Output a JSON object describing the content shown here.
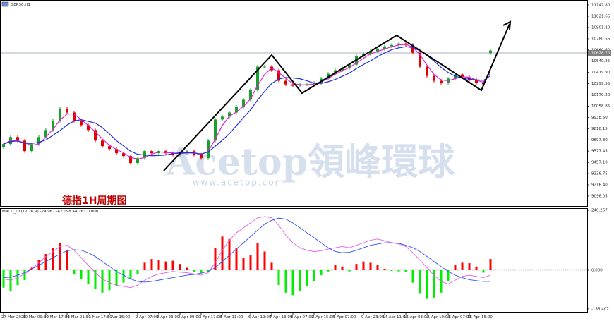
{
  "chart_data": [
    {
      "type": "candlestick",
      "title": "GER30,H1",
      "annotation": "德指1H周期图",
      "watermark": "Acetop領峰環球",
      "watermark_url": "www.acetop.com",
      "categories": [
        "27 Mar 2020",
        null,
        null,
        "30 Mar 09:00",
        null,
        null,
        "30 Mar 17:00",
        null,
        null,
        "31 Mar 01:00",
        null,
        null,
        "31 Mar 17:00",
        null,
        null,
        "1 Apr 15:00",
        null,
        null,
        null,
        "2 Apr 07:00",
        null,
        null,
        "2 Apr 23:00",
        null,
        null,
        "3 Apr 09:00",
        null,
        null,
        "3 Apr 17:00",
        null,
        null,
        "6 Apr 11:00",
        null,
        null,
        null,
        "6 Apr 19:00",
        null,
        null,
        "7 Apr 13:00",
        null,
        null,
        "8 Apr 07:00",
        null,
        null,
        "8 Apr 15:00",
        null,
        null,
        "9 Apr 07:00",
        null,
        null,
        null,
        "9 Apr 23:00",
        null,
        null,
        "14 Apr 11:00",
        null,
        null,
        "15 Apr 03:00",
        null,
        null,
        "15 Apr 19:00",
        null,
        null,
        "16 Apr 07:00",
        null,
        null,
        "16 Apr 15:00",
        null,
        null,
        null
      ],
      "open": [
        9620,
        9653,
        9728,
        9690,
        9578,
        9653,
        9728,
        9803,
        9901,
        10029,
        9991,
        9901,
        9856,
        9803,
        9690,
        9630,
        9600,
        9555,
        9525,
        9450,
        9502,
        9578,
        9555,
        9578,
        9555,
        9540,
        9555,
        9578,
        9540,
        9502,
        9690,
        9916,
        9946,
        9991,
        10052,
        10127,
        10232,
        10481,
        10481,
        10443,
        10330,
        10292,
        10277,
        10292,
        10292,
        10308,
        10353,
        10405,
        10443,
        10466,
        10503,
        10594,
        10616,
        10646,
        10669,
        10699,
        10714,
        10729,
        10714,
        10631,
        10481,
        10383,
        10330,
        10308,
        10353,
        10398,
        10368,
        10338,
        10308,
        10625
      ],
      "high": [
        9671,
        9746,
        9746,
        9708,
        9671,
        9746,
        9821,
        9919,
        10047,
        10047,
        10009,
        9919,
        9874,
        9821,
        9708,
        9648,
        9618,
        9573,
        9543,
        9520,
        9596,
        9596,
        9596,
        9596,
        9573,
        9573,
        9596,
        9596,
        9558,
        9708,
        9934,
        9964,
        10009,
        10070,
        10145,
        10250,
        10499,
        10499,
        10499,
        10461,
        10348,
        10310,
        10310,
        10310,
        10326,
        10371,
        10423,
        10461,
        10484,
        10521,
        10612,
        10634,
        10664,
        10687,
        10717,
        10732,
        10747,
        10747,
        10732,
        10649,
        10499,
        10401,
        10348,
        10371,
        10416,
        10416,
        10386,
        10356,
        10326,
        10672
      ],
      "low": [
        9602,
        9635,
        9672,
        9560,
        9560,
        9635,
        9710,
        9785,
        9883,
        9973,
        9883,
        9838,
        9785,
        9672,
        9612,
        9582,
        9537,
        9507,
        9432,
        9432,
        9484,
        9537,
        9537,
        9537,
        9522,
        9522,
        9537,
        9522,
        9484,
        9484,
        9672,
        9898,
        9928,
        9973,
        10034,
        10109,
        10214,
        10463,
        10425,
        10312,
        10274,
        10259,
        10259,
        10274,
        10274,
        10290,
        10335,
        10387,
        10425,
        10448,
        10485,
        10576,
        10598,
        10628,
        10651,
        10681,
        10696,
        10696,
        10613,
        10463,
        10365,
        10312,
        10290,
        10290,
        10335,
        10350,
        10320,
        10290,
        10274,
        10607
      ],
      "close": [
        9653,
        9728,
        9690,
        9578,
        9653,
        9728,
        9803,
        9901,
        10029,
        9991,
        9901,
        9856,
        9803,
        9690,
        9630,
        9600,
        9555,
        9525,
        9450,
        9502,
        9578,
        9555,
        9578,
        9555,
        9540,
        9555,
        9578,
        9540,
        9502,
        9690,
        9916,
        9946,
        9991,
        10052,
        10127,
        10232,
        10481,
        10481,
        10443,
        10330,
        10292,
        10277,
        10292,
        10292,
        10308,
        10353,
        10405,
        10443,
        10466,
        10503,
        10594,
        10616,
        10646,
        10669,
        10699,
        10714,
        10729,
        10714,
        10631,
        10481,
        10383,
        10330,
        10308,
        10353,
        10398,
        10368,
        10338,
        10308,
        10292,
        10654
      ],
      "up_color": "#19a02a",
      "down_color": "#e00000",
      "series": [
        {
          "color": "#e020d0",
          "values": [
            9653,
            9690,
            9690,
            9665,
            9640,
            9653,
            9728,
            9811,
            9911,
            9974,
            9974,
            9916,
            9853,
            9783,
            9708,
            9640,
            9595,
            9560,
            9510,
            9492,
            9510,
            9545,
            9570,
            9563,
            9558,
            9550,
            9558,
            9558,
            9540,
            9577,
            9703,
            9851,
            9951,
            9996,
            10057,
            10137,
            10280,
            10398,
            10468,
            10418,
            10355,
            10300,
            10287,
            10287,
            10297,
            10318,
            10355,
            10400,
            10438,
            10471,
            10521,
            10571,
            10619,
            10644,
            10671,
            10694,
            10714,
            10719,
            10691,
            10609,
            10498,
            10398,
            10340,
            10330,
            10353,
            10373,
            10368,
            10338,
            10313,
            10418
          ]
        },
        {
          "color": "#1f2fe0",
          "values": [
            9653,
            9680,
            9685,
            9662,
            9660,
            9672,
            9697,
            9747,
            9797,
            9857,
            9901,
            9914,
            9896,
            9878,
            9829,
            9762,
            9689,
            9634,
            9576,
            9544,
            9535,
            9528,
            9531,
            9536,
            9551,
            9560,
            9560,
            9559,
            9546,
            9569,
            9630,
            9694,
            9764,
            9849,
            9937,
            10019,
            10124,
            10218,
            10301,
            10349,
            10365,
            10360,
            10352,
            10330,
            10304,
            10302,
            10320,
            10345,
            10378,
            10413,
            10461,
            10504,
            10544,
            10589,
            10629,
            10663,
            10683,
            10695,
            10685,
            10652,
            10602,
            10541,
            10473,
            10420,
            10380,
            10357,
            10347,
            10341,
            10334,
            10385
          ]
        }
      ],
      "current_price": {
        "value": 10628.7,
        "label": "10628.70"
      },
      "ylim": [
        8990,
        11195
      ],
      "yticks": [
        {
          "value": 11142.8,
          "label": "11142.80"
        },
        {
          "value": 11021.65,
          "label": "11021.65"
        },
        {
          "value": 10901.2,
          "label": "10901.20"
        },
        {
          "value": 10780.55,
          "label": "10780.55"
        },
        {
          "value": 10660.6,
          "label": "10660.60"
        },
        {
          "value": 10540.25,
          "label": "10540.25"
        },
        {
          "value": 10419.9,
          "label": "10419.90"
        },
        {
          "value": 10299.55,
          "label": "10299.55"
        },
        {
          "value": 10179.2,
          "label": "10179.20"
        },
        {
          "value": 10058.85,
          "label": "10058.85"
        },
        {
          "value": 9938.5,
          "label": "9938.50"
        },
        {
          "value": 9818.15,
          "label": "9818.15"
        },
        {
          "value": 9697.8,
          "label": "9697.80"
        },
        {
          "value": 9577.45,
          "label": "9577.45"
        },
        {
          "value": 9457.1,
          "label": "9457.10"
        },
        {
          "value": 9336.75,
          "label": "9336.75"
        },
        {
          "value": 9216.4,
          "label": "9216.40"
        },
        {
          "value": 9096.05,
          "label": "9096.05"
        }
      ]
    },
    {
      "type": "macd",
      "title": "MACD_DL(12,26,9) -24.967 -47.098 44.261 0.000",
      "histogram": [
        -70,
        -85,
        -60,
        -40,
        10,
        40,
        65,
        90,
        110,
        80,
        -15,
        -35,
        -55,
        -75,
        -90,
        -80,
        -65,
        -50,
        -35,
        -15,
        30,
        45,
        40,
        35,
        38,
        25,
        10,
        -8,
        -12,
        -5,
        90,
        135,
        125,
        90,
        50,
        60,
        110,
        75,
        30,
        -60,
        -90,
        -100,
        -85,
        -65,
        -45,
        -20,
        -5,
        20,
        15,
        -5,
        25,
        35,
        30,
        20,
        5,
        -3,
        -5,
        -8,
        -50,
        -95,
        -115,
        -110,
        -90,
        -45,
        20,
        30,
        28,
        15,
        -10,
        45
      ],
      "positive_color": "#ff0000",
      "negative_color": "#00ee00",
      "series": [
        {
          "color": "#e060e0",
          "values": [
            -35,
            -40,
            -30,
            -15,
            5,
            30,
            55,
            75,
            95,
            100,
            80,
            50,
            20,
            -10,
            -35,
            -50,
            -60,
            -65,
            -70,
            -60,
            -40,
            -25,
            -15,
            -10,
            -5,
            -8,
            -10,
            -15,
            -20,
            -10,
            30,
            80,
            120,
            150,
            170,
            190,
            210,
            215,
            210,
            180,
            140,
            110,
            90,
            80,
            75,
            78,
            85,
            90,
            95,
            90,
            100,
            110,
            120,
            125,
            118,
            110,
            105,
            95,
            70,
            40,
            10,
            -20,
            -45,
            -55,
            -40,
            -25,
            -20,
            -25,
            -30,
            -20
          ]
        },
        {
          "color": "#3050ff",
          "values": [
            -30,
            -28,
            -20,
            -10,
            5,
            20,
            35,
            50,
            65,
            78,
            82,
            80,
            70,
            55,
            35,
            15,
            -5,
            -20,
            -35,
            -45,
            -48,
            -45,
            -40,
            -35,
            -30,
            -25,
            -20,
            -17,
            -12,
            -5,
            10,
            35,
            60,
            85,
            110,
            135,
            160,
            185,
            200,
            209,
            205,
            190,
            170,
            150,
            130,
            110,
            90,
            75,
            70,
            72,
            80,
            90,
            100,
            105,
            110,
            110,
            108,
            100,
            90,
            75,
            55,
            35,
            15,
            -5,
            -20,
            -30,
            -38,
            -42,
            -45,
            -45
          ]
        }
      ],
      "ylim": [
        -167,
        249
      ],
      "yticks": [
        240.267,
        {
          "value": 0,
          "label": "0.000"
        },
        -155.407
      ]
    }
  ]
}
